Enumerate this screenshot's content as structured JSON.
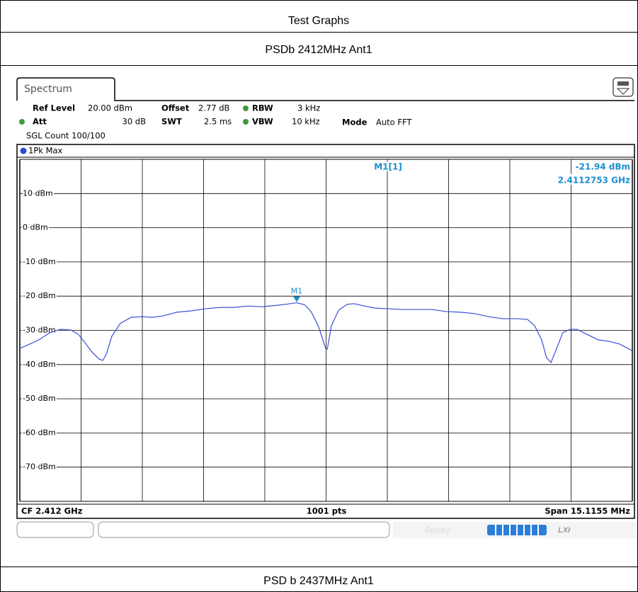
{
  "header": {
    "title": "Test Graphs",
    "subtitle": "PSDb 2412MHz Ant1",
    "next_caption": "PSD b 2437MHz Ant1"
  },
  "instrument": {
    "tab": "Spectrum",
    "ref_level_label": "Ref Level",
    "ref_level": "20.00 dBm",
    "offset_label": "Offset",
    "offset": "2.77 dB",
    "rbw_label": "RBW",
    "rbw": "3 kHz",
    "att_label": "Att",
    "att": "30 dB",
    "swt_label": "SWT",
    "swt": "2.5 ms",
    "vbw_label": "VBW",
    "vbw": "10 kHz",
    "mode_label": "Mode",
    "mode": "Auto FFT",
    "count": "SGL Count 100/100",
    "status": "Ready"
  },
  "chart_data": {
    "type": "line",
    "trace_label": "1Pk Max",
    "footer_left": "CF 2.412 GHz",
    "footer_center": "1001 pts",
    "footer_right": "Span 15.1155 MHz",
    "xlim": [
      2404.44225,
      2419.55775
    ],
    "ylim": [
      -80,
      20
    ],
    "yticks": [
      {
        "value": 10,
        "label": "10 dBm"
      },
      {
        "value": 0,
        "label": "0 dBm"
      },
      {
        "value": -10,
        "label": "-10 dBm"
      },
      {
        "value": -20,
        "label": "-20 dBm"
      },
      {
        "value": -30,
        "label": "-30 dBm"
      },
      {
        "value": -40,
        "label": "-40 dBm"
      },
      {
        "value": -50,
        "label": "-50 dBm"
      },
      {
        "value": -60,
        "label": "-60 dBm"
      },
      {
        "value": -70,
        "label": "-70 dBm"
      }
    ],
    "grid": true,
    "series": [
      {
        "name": "1Pk Max",
        "color": "#3a4fd6",
        "x": [
          2404.44,
          2404.65,
          2404.91,
          2405.18,
          2405.44,
          2405.7,
          2405.88,
          2406.05,
          2406.22,
          2406.4,
          2406.49,
          2406.58,
          2406.71,
          2406.92,
          2407.19,
          2407.45,
          2407.71,
          2407.97,
          2408.32,
          2408.67,
          2409.02,
          2409.37,
          2409.72,
          2410.07,
          2410.42,
          2410.77,
          2411.12,
          2411.2753,
          2411.47,
          2411.64,
          2411.82,
          2411.99,
          2412.03,
          2412.13,
          2412.31,
          2412.52,
          2412.69,
          2412.95,
          2413.21,
          2413.56,
          2413.91,
          2414.26,
          2414.61,
          2414.96,
          2415.31,
          2415.66,
          2416.01,
          2416.36,
          2416.71,
          2416.97,
          2417.15,
          2417.32,
          2417.44,
          2417.55,
          2417.67,
          2417.84,
          2418.02,
          2418.19,
          2418.46,
          2418.72,
          2418.98,
          2419.24,
          2419.55
        ],
        "values": [
          -35.3,
          -34.2,
          -32.8,
          -30.7,
          -29.7,
          -29.9,
          -31.1,
          -33.6,
          -36.3,
          -38.4,
          -38.8,
          -36.9,
          -31.8,
          -28.0,
          -26.2,
          -26.0,
          -26.2,
          -25.8,
          -24.7,
          -24.3,
          -23.7,
          -23.3,
          -23.3,
          -22.9,
          -23.1,
          -22.7,
          -22.2,
          -21.94,
          -22.5,
          -24.7,
          -29.1,
          -35.3,
          -35.5,
          -28.7,
          -24.1,
          -22.4,
          -22.2,
          -22.9,
          -23.5,
          -23.7,
          -23.9,
          -23.9,
          -23.9,
          -24.5,
          -24.7,
          -25.1,
          -26.0,
          -26.6,
          -26.6,
          -26.8,
          -28.7,
          -32.8,
          -38.0,
          -39.4,
          -35.9,
          -30.7,
          -29.7,
          -29.7,
          -31.3,
          -32.8,
          -33.2,
          -34.0,
          -35.9
        ]
      }
    ],
    "marker": {
      "label": "M1",
      "readout": "M1[1]",
      "x": 2411.2753,
      "value": -21.94,
      "value_label": "-21.94 dBm",
      "x_label": "2.4112753 GHz",
      "color": "#1a8fd0"
    }
  }
}
